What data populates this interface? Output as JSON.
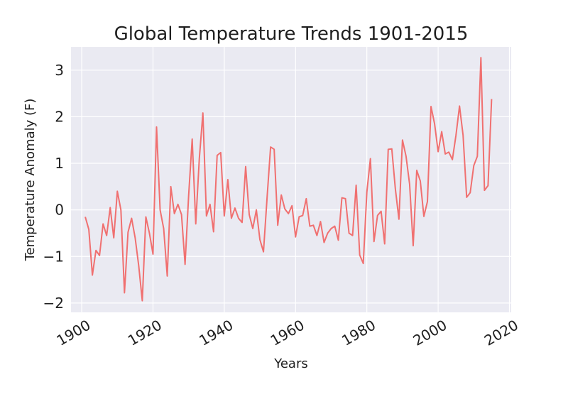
{
  "chart_data": {
    "type": "line",
    "title": "Global Temperature Trends 1901-2015",
    "xlabel": "Years",
    "ylabel": "Temperature Anomaly (F)",
    "xlim": [
      1897,
      2020.5
    ],
    "ylim": [
      -2.2,
      3.5
    ],
    "xticks": [
      1900,
      1920,
      1940,
      1960,
      1980,
      2000,
      2020
    ],
    "yticks": [
      -2,
      -1,
      0,
      1,
      2,
      3
    ],
    "xtick_labels": [
      "1900",
      "1920",
      "1940",
      "1960",
      "1980",
      "2000",
      "2020"
    ],
    "ytick_labels": [
      "−2",
      "−1",
      "0",
      "1",
      "2",
      "3"
    ],
    "grid": true,
    "line_color": "#f07070",
    "background_color": "#eaeaf2",
    "series": [
      {
        "x": [
          1901,
          1902,
          1903,
          1904,
          1905,
          1906,
          1907,
          1908,
          1909,
          1910,
          1911,
          1912,
          1913,
          1914,
          1915,
          1916,
          1917,
          1918,
          1919,
          1920,
          1921,
          1922,
          1923,
          1924,
          1925,
          1926,
          1927,
          1928,
          1929,
          1930,
          1931,
          1932,
          1933,
          1934,
          1935,
          1936,
          1937,
          1938,
          1939,
          1940,
          1941,
          1942,
          1943,
          1944,
          1945,
          1946,
          1947,
          1948,
          1949,
          1950,
          1951,
          1952,
          1953,
          1954,
          1955,
          1956,
          1957,
          1958,
          1959,
          1960,
          1961,
          1962,
          1963,
          1964,
          1965,
          1966,
          1967,
          1968,
          1969,
          1970,
          1971,
          1972,
          1973,
          1974,
          1975,
          1976,
          1977,
          1978,
          1979,
          1980,
          1981,
          1982,
          1983,
          1984,
          1985,
          1986,
          1987,
          1988,
          1989,
          1990,
          1991,
          1992,
          1993,
          1994,
          1995,
          1996,
          1997,
          1998,
          1999,
          2000,
          2001,
          2002,
          2003,
          2004,
          2005,
          2006,
          2007,
          2008,
          2009,
          2010,
          2011,
          2012,
          2013,
          2014,
          2015
        ],
        "values": [
          -0.15,
          -0.42,
          -1.4,
          -0.87,
          -0.98,
          -0.3,
          -0.55,
          0.05,
          -0.6,
          0.4,
          0.0,
          -1.78,
          -0.48,
          -0.18,
          -0.6,
          -1.2,
          -1.95,
          -0.15,
          -0.5,
          -0.95,
          1.78,
          0.0,
          -0.4,
          -1.42,
          0.5,
          -0.08,
          0.12,
          -0.1,
          -1.17,
          0.3,
          1.52,
          -0.3,
          1.1,
          2.08,
          -0.13,
          0.12,
          -0.47,
          1.17,
          1.23,
          -0.13,
          0.65,
          -0.18,
          0.04,
          -0.18,
          -0.27,
          0.93,
          -0.1,
          -0.4,
          0.0,
          -0.64,
          -0.9,
          0.25,
          1.35,
          1.3,
          -0.33,
          0.32,
          0.02,
          -0.08,
          0.09,
          -0.58,
          -0.15,
          -0.12,
          0.24,
          -0.35,
          -0.33,
          -0.55,
          -0.25,
          -0.7,
          -0.5,
          -0.4,
          -0.35,
          -0.65,
          0.26,
          0.24,
          -0.5,
          -0.55,
          0.53,
          -0.97,
          -1.15,
          0.38,
          1.1,
          -0.68,
          -0.12,
          -0.03,
          -0.73,
          1.3,
          1.31,
          0.45,
          -0.2,
          1.5,
          1.15,
          0.55,
          -0.77,
          0.85,
          0.62,
          -0.14,
          0.18,
          2.22,
          1.85,
          1.25,
          1.68,
          1.2,
          1.24,
          1.08,
          1.6,
          2.23,
          1.6,
          0.27,
          0.37,
          0.95,
          1.15,
          3.27,
          0.42,
          0.52,
          2.38
        ]
      }
    ]
  }
}
